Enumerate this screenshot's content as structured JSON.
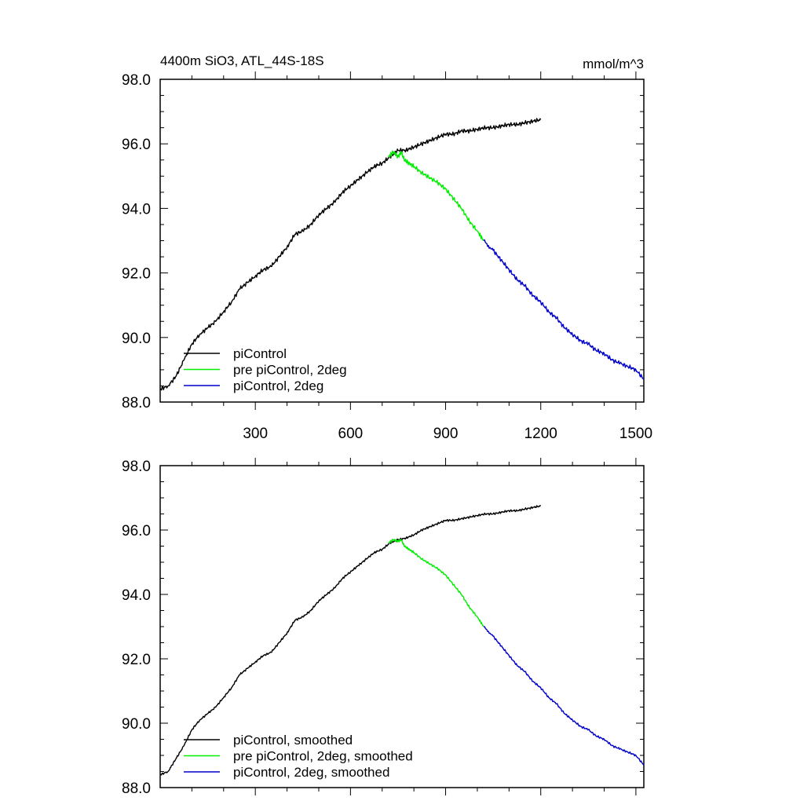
{
  "chart_data": [
    {
      "type": "line",
      "title": "4400m SiO3, ATL_44S-18S",
      "units": "mmol/m^3",
      "xlim": [
        0,
        1525
      ],
      "ylim": [
        88.0,
        98.0
      ],
      "xticks": [
        300,
        600,
        900,
        1200,
        1500
      ],
      "yticks": [
        "88.0",
        "90.0",
        "92.0",
        "94.0",
        "96.0",
        "98.0"
      ],
      "grid": false,
      "legend_position": "bottom-left",
      "series": [
        {
          "name": "piControl",
          "color": "#000000",
          "x": [
            0,
            25,
            50,
            75,
            100,
            125,
            150,
            175,
            200,
            225,
            250,
            275,
            300,
            325,
            350,
            375,
            400,
            425,
            450,
            475,
            500,
            525,
            550,
            575,
            600,
            625,
            650,
            675,
            700,
            725,
            750,
            775,
            800,
            825,
            850,
            875,
            900,
            925,
            950,
            975,
            1000,
            1025,
            1050,
            1075,
            1100,
            1125,
            1150,
            1175,
            1200
          ],
          "y": [
            88.4,
            88.5,
            88.8,
            89.3,
            89.8,
            90.1,
            90.3,
            90.5,
            90.8,
            91.1,
            91.5,
            91.7,
            91.9,
            92.1,
            92.2,
            92.5,
            92.8,
            93.2,
            93.3,
            93.5,
            93.8,
            94.0,
            94.2,
            94.5,
            94.7,
            94.9,
            95.1,
            95.3,
            95.4,
            95.6,
            95.8,
            95.8,
            95.9,
            96.0,
            96.1,
            96.2,
            96.3,
            96.3,
            96.4,
            96.4,
            96.45,
            96.5,
            96.5,
            96.55,
            96.6,
            96.6,
            96.65,
            96.7,
            96.75
          ]
        },
        {
          "name": "pre piControl, 2deg",
          "color": "#00ee00",
          "x": [
            720,
            735,
            750,
            760,
            770,
            785,
            800,
            825,
            850,
            875,
            900,
            925,
            950,
            975,
            1000,
            1020
          ],
          "y": [
            95.6,
            95.75,
            95.6,
            95.75,
            95.5,
            95.4,
            95.3,
            95.1,
            94.95,
            94.8,
            94.6,
            94.3,
            94.0,
            93.6,
            93.3,
            93.0
          ]
        },
        {
          "name": "piControl, 2deg",
          "color": "#0000cc",
          "x": [
            1020,
            1050,
            1075,
            1100,
            1125,
            1150,
            1175,
            1200,
            1225,
            1250,
            1275,
            1300,
            1325,
            1350,
            1375,
            1400,
            1425,
            1450,
            1475,
            1500,
            1525
          ],
          "y": [
            93.0,
            92.7,
            92.4,
            92.1,
            91.8,
            91.6,
            91.3,
            91.1,
            90.8,
            90.6,
            90.3,
            90.1,
            89.9,
            89.8,
            89.6,
            89.5,
            89.3,
            89.2,
            89.1,
            89.0,
            88.7
          ]
        }
      ]
    },
    {
      "type": "line",
      "xlim": [
        0,
        1525
      ],
      "ylim": [
        88.0,
        98.0
      ],
      "yticks": [
        "88.0",
        "90.0",
        "92.0",
        "94.0",
        "96.0",
        "98.0"
      ],
      "grid": false,
      "legend_position": "bottom-left",
      "series": [
        {
          "name": "piControl, smoothed",
          "color": "#000000",
          "x": [
            0,
            25,
            50,
            75,
            100,
            125,
            150,
            175,
            200,
            225,
            250,
            275,
            300,
            325,
            350,
            375,
            400,
            425,
            450,
            475,
            500,
            525,
            550,
            575,
            600,
            625,
            650,
            675,
            700,
            725,
            750,
            775,
            800,
            825,
            850,
            875,
            900,
            925,
            950,
            975,
            1000,
            1025,
            1050,
            1075,
            1100,
            1125,
            1150,
            1175,
            1200
          ],
          "y": [
            88.4,
            88.5,
            88.9,
            89.3,
            89.8,
            90.1,
            90.3,
            90.5,
            90.8,
            91.1,
            91.5,
            91.7,
            91.9,
            92.1,
            92.2,
            92.5,
            92.8,
            93.2,
            93.3,
            93.5,
            93.8,
            94.0,
            94.2,
            94.5,
            94.7,
            94.9,
            95.1,
            95.3,
            95.4,
            95.6,
            95.7,
            95.75,
            95.85,
            96.0,
            96.1,
            96.2,
            96.3,
            96.3,
            96.35,
            96.4,
            96.45,
            96.5,
            96.5,
            96.55,
            96.6,
            96.6,
            96.65,
            96.7,
            96.75
          ]
        },
        {
          "name": "pre piControl, 2deg, smoothed",
          "color": "#00ee00",
          "x": [
            720,
            735,
            750,
            760,
            770,
            785,
            800,
            825,
            850,
            875,
            900,
            925,
            950,
            975,
            1000,
            1020
          ],
          "y": [
            95.6,
            95.7,
            95.65,
            95.7,
            95.5,
            95.4,
            95.3,
            95.1,
            94.95,
            94.8,
            94.6,
            94.3,
            94.0,
            93.6,
            93.3,
            93.0
          ]
        },
        {
          "name": "piControl, 2deg, smoothed",
          "color": "#0000cc",
          "x": [
            1020,
            1050,
            1075,
            1100,
            1125,
            1150,
            1175,
            1200,
            1225,
            1250,
            1275,
            1300,
            1325,
            1350,
            1375,
            1400,
            1425,
            1450,
            1475,
            1500,
            1525
          ],
          "y": [
            93.0,
            92.7,
            92.4,
            92.1,
            91.8,
            91.6,
            91.3,
            91.1,
            90.8,
            90.6,
            90.3,
            90.1,
            89.9,
            89.8,
            89.6,
            89.5,
            89.3,
            89.2,
            89.1,
            89.0,
            88.7
          ]
        }
      ]
    }
  ]
}
